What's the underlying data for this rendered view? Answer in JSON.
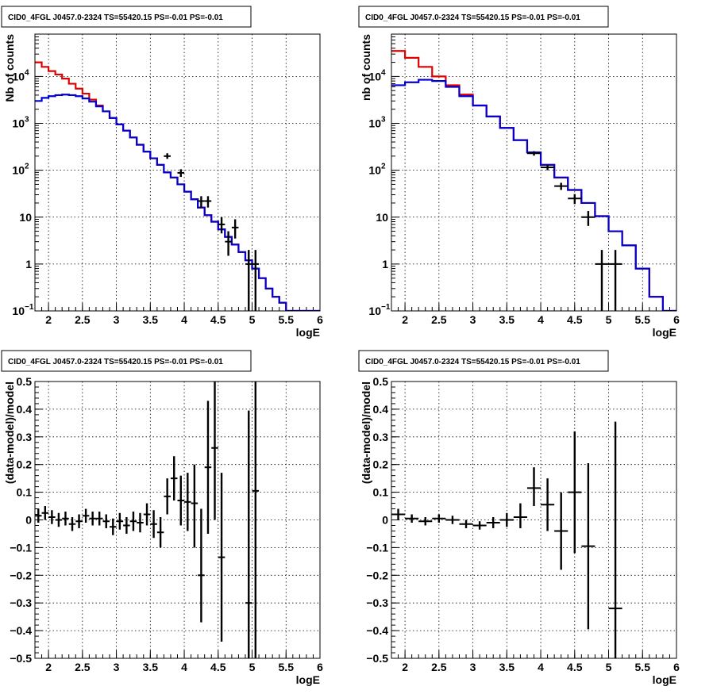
{
  "chart_data": [
    {
      "id": "top-left",
      "type": "line",
      "title": "CID0_4FGL J0457.0-2324 TS=55420.15 PS=-0.01 PS=-0.01",
      "xlabel": "logE",
      "ylabel": "Nb of counts",
      "xlim": [
        1.8,
        6.0
      ],
      "ylim": [
        0.1,
        80000
      ],
      "yscale": "log",
      "grid": true,
      "x_ticks": [
        "2",
        "2.5",
        "3",
        "3.5",
        "4",
        "4.5",
        "5",
        "5.5",
        "6"
      ],
      "y_ticks": [
        {
          "value": 0.1,
          "base": "10",
          "exp": "−1"
        },
        {
          "value": 1,
          "label": "1"
        },
        {
          "value": 10,
          "label": "10"
        },
        {
          "value": 100,
          "base": "10",
          "exp": "2"
        },
        {
          "value": 1000,
          "base": "10",
          "exp": "3"
        },
        {
          "value": 10000,
          "base": "10",
          "exp": "4"
        }
      ],
      "series": [
        {
          "color": "#e00000",
          "style": "step",
          "edges": [
            1.8,
            1.9,
            2.0,
            2.1,
            2.2,
            2.3,
            2.4,
            2.5,
            2.6,
            2.7,
            2.8,
            2.9,
            3.0,
            3.1,
            3.2,
            3.3,
            3.4,
            3.5,
            3.6,
            3.7,
            3.8,
            3.9,
            4.0,
            4.1,
            4.2,
            4.3,
            4.4,
            4.5,
            4.6,
            4.7,
            4.8,
            4.9,
            5.0,
            5.1,
            5.2,
            5.3,
            5.4,
            5.5,
            5.6,
            5.7,
            5.8,
            5.9,
            6.0
          ],
          "values": [
            20000,
            16000,
            13000,
            11000,
            9000,
            7000,
            5500,
            4300,
            3200,
            2400,
            1800,
            1300,
            950,
            700,
            500,
            350,
            250,
            180,
            130,
            90,
            70,
            50,
            35,
            24,
            16,
            11,
            8,
            5.5,
            3.8,
            2.6,
            1.8,
            1.2,
            0.8,
            0.5,
            0.3,
            0.2,
            0.15,
            0.1,
            0.1,
            0.1,
            0.1,
            0.1
          ]
        },
        {
          "color": "#0000d0",
          "style": "step",
          "edges": [
            1.8,
            1.9,
            2.0,
            2.1,
            2.2,
            2.3,
            2.4,
            2.5,
            2.6,
            2.7,
            2.8,
            2.9,
            3.0,
            3.1,
            3.2,
            3.3,
            3.4,
            3.5,
            3.6,
            3.7,
            3.8,
            3.9,
            4.0,
            4.1,
            4.2,
            4.3,
            4.4,
            4.5,
            4.6,
            4.7,
            4.8,
            4.9,
            5.0,
            5.1,
            5.2,
            5.3,
            5.4,
            5.5,
            5.6,
            5.7,
            5.8,
            5.9,
            6.0
          ],
          "values": [
            3000,
            3500,
            3800,
            4000,
            4100,
            4000,
            3800,
            3400,
            2900,
            2300,
            1800,
            1300,
            950,
            700,
            500,
            350,
            250,
            180,
            130,
            90,
            70,
            50,
            35,
            24,
            16,
            11,
            8,
            5.5,
            3.8,
            2.6,
            1.8,
            1.2,
            0.8,
            0.5,
            0.3,
            0.2,
            0.15,
            0.1,
            0.1,
            0.1,
            0.1,
            0.1
          ]
        }
      ],
      "points": [
        {
          "x": 3.75,
          "y": 200,
          "ylo": 175,
          "yhi": 230,
          "xw": 0.05
        },
        {
          "x": 3.95,
          "y": 88,
          "ylo": 72,
          "yhi": 105,
          "xw": 0.05
        },
        {
          "x": 4.25,
          "y": 22,
          "ylo": 16,
          "yhi": 28,
          "xw": 0.05
        },
        {
          "x": 4.35,
          "y": 22,
          "ylo": 16,
          "yhi": 28,
          "xw": 0.05
        },
        {
          "x": 4.55,
          "y": 7,
          "ylo": 4.5,
          "yhi": 10,
          "xw": 0.05
        },
        {
          "x": 4.65,
          "y": 3,
          "ylo": 1.5,
          "yhi": 5,
          "xw": 0.05
        },
        {
          "x": 4.75,
          "y": 6,
          "ylo": 3.5,
          "yhi": 9,
          "xw": 0.05
        },
        {
          "x": 4.95,
          "y": 1,
          "ylo": 0.1,
          "yhi": 2,
          "xw": 0.05
        },
        {
          "x": 5.05,
          "y": 1,
          "ylo": 0.1,
          "yhi": 2,
          "xw": 0.05
        }
      ]
    },
    {
      "id": "top-right",
      "type": "line",
      "title": "CID0_4FGL J0457.0-2324 TS=55420.15 PS=-0.01 PS=-0.01",
      "xlabel": "logE",
      "ylabel": "nb of counts",
      "xlim": [
        1.8,
        6.0
      ],
      "ylim": [
        0.1,
        80000
      ],
      "yscale": "log",
      "grid": true,
      "x_ticks": [
        "2",
        "2.5",
        "3",
        "3.5",
        "4",
        "4.5",
        "5",
        "5.5",
        "6"
      ],
      "y_ticks": [
        {
          "value": 0.1,
          "base": "10",
          "exp": "−1"
        },
        {
          "value": 1,
          "label": "1"
        },
        {
          "value": 10,
          "label": "10"
        },
        {
          "value": 100,
          "base": "10",
          "exp": "2"
        },
        {
          "value": 1000,
          "base": "10",
          "exp": "3"
        },
        {
          "value": 10000,
          "base": "10",
          "exp": "4"
        }
      ],
      "series": [
        {
          "color": "#e00000",
          "style": "step",
          "edges": [
            1.8,
            2.0,
            2.2,
            2.4,
            2.6,
            2.8,
            3.0,
            3.2,
            3.4,
            3.6,
            3.8,
            4.0,
            4.2,
            4.4,
            4.6,
            4.8,
            5.0,
            5.2,
            5.4,
            5.6,
            5.8,
            6.0
          ],
          "values": [
            35000,
            25000,
            16000,
            10000,
            6500,
            4100,
            2400,
            1400,
            800,
            440,
            240,
            130,
            70,
            38,
            20,
            10.5,
            5,
            2.5,
            0.8,
            0.2,
            0.1
          ]
        },
        {
          "color": "#0000d0",
          "style": "step",
          "edges": [
            1.8,
            2.0,
            2.2,
            2.4,
            2.6,
            2.8,
            3.0,
            3.2,
            3.4,
            3.6,
            3.8,
            4.0,
            4.2,
            4.4,
            4.6,
            4.8,
            5.0,
            5.2,
            5.4,
            5.6,
            5.8,
            6.0
          ],
          "values": [
            6500,
            7500,
            8500,
            8000,
            6000,
            3800,
            2400,
            1400,
            800,
            440,
            240,
            130,
            70,
            38,
            20,
            10.5,
            5,
            2.5,
            0.8,
            0.2,
            0.1
          ]
        }
      ],
      "points": [
        {
          "x": 3.9,
          "y": 230,
          "ylo": 205,
          "yhi": 255,
          "xw": 0.1
        },
        {
          "x": 4.1,
          "y": 115,
          "ylo": 100,
          "yhi": 130,
          "xw": 0.1
        },
        {
          "x": 4.3,
          "y": 46,
          "ylo": 38,
          "yhi": 54,
          "xw": 0.1
        },
        {
          "x": 4.5,
          "y": 25,
          "ylo": 19,
          "yhi": 31,
          "xw": 0.1
        },
        {
          "x": 4.7,
          "y": 10,
          "ylo": 6.5,
          "yhi": 13.5,
          "xw": 0.1
        },
        {
          "x": 4.9,
          "y": 1,
          "ylo": 0.1,
          "yhi": 2,
          "xw": 0.1
        },
        {
          "x": 5.1,
          "y": 1,
          "ylo": 0.1,
          "yhi": 2,
          "xw": 0.1
        }
      ]
    },
    {
      "id": "bottom-left",
      "type": "scatter",
      "title": "CID0_4FGL J0457.0-2324 TS=55420.15 PS=-0.01 PS=-0.01",
      "xlabel": "logE",
      "ylabel": "(data-model)/model",
      "xlim": [
        1.8,
        6.0
      ],
      "ylim": [
        -0.5,
        0.5
      ],
      "yscale": "linear",
      "grid": true,
      "x_ticks": [
        "2",
        "2.5",
        "3",
        "3.5",
        "4",
        "4.5",
        "5",
        "5.5",
        "6"
      ],
      "y_ticks_linear": [
        "−0.5",
        "−0.4",
        "−0.3",
        "−0.2",
        "−0.1",
        "0",
        "0.1",
        "0.2",
        "0.3",
        "0.4",
        "0.5"
      ],
      "points": [
        {
          "x": 1.85,
          "y": 0.015,
          "ylo": -0.01,
          "yhi": 0.04,
          "xw": 0.05
        },
        {
          "x": 1.95,
          "y": 0.025,
          "ylo": 0.0,
          "yhi": 0.05,
          "xw": 0.05
        },
        {
          "x": 2.05,
          "y": 0.01,
          "ylo": -0.015,
          "yhi": 0.035,
          "xw": 0.05
        },
        {
          "x": 2.15,
          "y": 0.0,
          "ylo": -0.025,
          "yhi": 0.025,
          "xw": 0.05
        },
        {
          "x": 2.25,
          "y": 0.005,
          "ylo": -0.02,
          "yhi": 0.03,
          "xw": 0.05
        },
        {
          "x": 2.35,
          "y": -0.015,
          "ylo": -0.04,
          "yhi": 0.01,
          "xw": 0.05
        },
        {
          "x": 2.45,
          "y": -0.005,
          "ylo": -0.03,
          "yhi": 0.02,
          "xw": 0.05
        },
        {
          "x": 2.55,
          "y": 0.015,
          "ylo": -0.01,
          "yhi": 0.04,
          "xw": 0.05
        },
        {
          "x": 2.65,
          "y": 0.005,
          "ylo": -0.02,
          "yhi": 0.03,
          "xw": 0.05
        },
        {
          "x": 2.75,
          "y": 0.005,
          "ylo": -0.02,
          "yhi": 0.03,
          "xw": 0.05
        },
        {
          "x": 2.85,
          "y": -0.005,
          "ylo": -0.03,
          "yhi": 0.02,
          "xw": 0.05
        },
        {
          "x": 2.95,
          "y": -0.025,
          "ylo": -0.055,
          "yhi": 0.005,
          "xw": 0.05
        },
        {
          "x": 3.05,
          "y": -0.005,
          "ylo": -0.035,
          "yhi": 0.025,
          "xw": 0.05
        },
        {
          "x": 3.15,
          "y": -0.02,
          "ylo": -0.05,
          "yhi": 0.01,
          "xw": 0.05
        },
        {
          "x": 3.25,
          "y": -0.005,
          "ylo": -0.04,
          "yhi": 0.03,
          "xw": 0.05
        },
        {
          "x": 3.35,
          "y": -0.01,
          "ylo": -0.045,
          "yhi": 0.025,
          "xw": 0.05
        },
        {
          "x": 3.45,
          "y": 0.02,
          "ylo": -0.02,
          "yhi": 0.06,
          "xw": 0.05
        },
        {
          "x": 3.55,
          "y": -0.015,
          "ylo": -0.065,
          "yhi": 0.035,
          "xw": 0.05
        },
        {
          "x": 3.65,
          "y": -0.045,
          "ylo": -0.1,
          "yhi": 0.01,
          "xw": 0.05
        },
        {
          "x": 3.75,
          "y": 0.085,
          "ylo": 0.02,
          "yhi": 0.15,
          "xw": 0.05
        },
        {
          "x": 3.85,
          "y": 0.15,
          "ylo": 0.07,
          "yhi": 0.23,
          "xw": 0.05
        },
        {
          "x": 3.95,
          "y": 0.07,
          "ylo": -0.02,
          "yhi": 0.16,
          "xw": 0.05
        },
        {
          "x": 4.05,
          "y": 0.065,
          "ylo": -0.04,
          "yhi": 0.17,
          "xw": 0.05
        },
        {
          "x": 4.15,
          "y": 0.06,
          "ylo": -0.1,
          "yhi": 0.2,
          "xw": 0.05
        },
        {
          "x": 4.25,
          "y": -0.2,
          "ylo": -0.37,
          "yhi": 0.04,
          "xw": 0.05
        },
        {
          "x": 4.35,
          "y": 0.19,
          "ylo": -0.05,
          "yhi": 0.43,
          "xw": 0.05
        },
        {
          "x": 4.45,
          "y": 0.26,
          "ylo": 0.0,
          "yhi": 0.5,
          "xw": 0.05
        },
        {
          "x": 4.55,
          "y": -0.135,
          "ylo": -0.44,
          "yhi": 0.17,
          "xw": 0.05
        },
        {
          "x": 4.95,
          "y": -0.3,
          "ylo": -0.5,
          "yhi": 0.395,
          "xw": 0.05
        },
        {
          "x": 5.05,
          "y": 0.105,
          "ylo": -0.5,
          "yhi": 0.5,
          "xw": 0.05
        }
      ]
    },
    {
      "id": "bottom-right",
      "type": "scatter",
      "title": "CID0_4FGL J0457.0-2324 TS=55420.15 PS=-0.01 PS=-0.01",
      "xlabel": "logE",
      "ylabel": "(data-model)/model",
      "xlim": [
        1.8,
        6.0
      ],
      "ylim": [
        -0.5,
        0.5
      ],
      "yscale": "linear",
      "grid": true,
      "x_ticks": [
        "2",
        "2.5",
        "3",
        "3.5",
        "4",
        "4.5",
        "5",
        "5.5",
        "6"
      ],
      "y_ticks_linear": [
        "−0.5",
        "−0.4",
        "−0.3",
        "−0.2",
        "−0.1",
        "0",
        "0.1",
        "0.2",
        "0.3",
        "0.4",
        "0.5"
      ],
      "points": [
        {
          "x": 1.9,
          "y": 0.02,
          "ylo": 0.0,
          "yhi": 0.04,
          "xw": 0.1
        },
        {
          "x": 2.1,
          "y": 0.005,
          "ylo": -0.01,
          "yhi": 0.02,
          "xw": 0.1
        },
        {
          "x": 2.3,
          "y": -0.005,
          "ylo": -0.02,
          "yhi": 0.01,
          "xw": 0.1
        },
        {
          "x": 2.5,
          "y": 0.005,
          "ylo": -0.01,
          "yhi": 0.02,
          "xw": 0.1
        },
        {
          "x": 2.7,
          "y": 0.0,
          "ylo": -0.015,
          "yhi": 0.015,
          "xw": 0.1
        },
        {
          "x": 2.9,
          "y": -0.015,
          "ylo": -0.03,
          "yhi": 0.0,
          "xw": 0.1
        },
        {
          "x": 3.1,
          "y": -0.02,
          "ylo": -0.035,
          "yhi": -0.005,
          "xw": 0.1
        },
        {
          "x": 3.3,
          "y": -0.01,
          "ylo": -0.03,
          "yhi": 0.01,
          "xw": 0.1
        },
        {
          "x": 3.5,
          "y": 0.0,
          "ylo": -0.025,
          "yhi": 0.025,
          "xw": 0.1
        },
        {
          "x": 3.7,
          "y": 0.01,
          "ylo": -0.03,
          "yhi": 0.06,
          "xw": 0.1
        },
        {
          "x": 3.9,
          "y": 0.115,
          "ylo": 0.05,
          "yhi": 0.19,
          "xw": 0.1
        },
        {
          "x": 4.1,
          "y": 0.055,
          "ylo": -0.04,
          "yhi": 0.15,
          "xw": 0.1
        },
        {
          "x": 4.3,
          "y": -0.04,
          "ylo": -0.18,
          "yhi": 0.1,
          "xw": 0.1
        },
        {
          "x": 4.5,
          "y": 0.1,
          "ylo": -0.12,
          "yhi": 0.32,
          "xw": 0.1
        },
        {
          "x": 4.7,
          "y": -0.095,
          "ylo": -0.395,
          "yhi": 0.205,
          "xw": 0.1
        },
        {
          "x": 5.1,
          "y": -0.32,
          "ylo": -0.5,
          "yhi": 0.355,
          "xw": 0.1
        }
      ]
    }
  ]
}
